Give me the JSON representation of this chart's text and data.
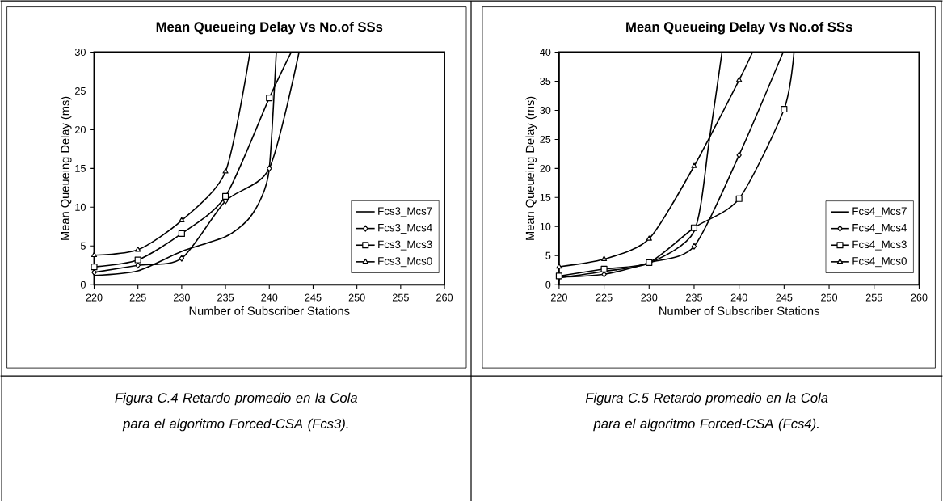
{
  "chart_data": [
    {
      "type": "line",
      "title": "Mean Queueing Delay Vs No.of SSs",
      "xlabel": "Number of Subscriber Stations",
      "ylabel": "Mean Queueing Delay (ms)",
      "xlim": [
        220,
        260
      ],
      "ylim": [
        0,
        30
      ],
      "xticks": [
        220,
        225,
        230,
        235,
        240,
        245,
        250,
        255,
        260
      ],
      "yticks": [
        0,
        5,
        10,
        15,
        20,
        25,
        30
      ],
      "legend": "bottom right",
      "annotations": [
        "Figura C.4 Retardo promedio en la Cola para el algoritmo Forced-CSA (Fcs3)."
      ],
      "series": [
        {
          "name": "Fcs3_Mcs7",
          "color": "#000000",
          "marker": "none",
          "x": [
            220,
            225,
            230,
            235,
            237.5,
            239,
            240,
            240.8
          ],
          "values": [
            1.2,
            1.8,
            4.3,
            6.2,
            8.3,
            11,
            15,
            30
          ]
        },
        {
          "name": "Fcs3_Mcs4",
          "color": "#000000",
          "marker": "diamond",
          "x": [
            220,
            225,
            230,
            235,
            240,
            243.4
          ],
          "values": [
            1.6,
            2.5,
            3.4,
            10.8,
            15,
            30
          ]
        },
        {
          "name": "Fcs3_Mcs3",
          "color": "#000000",
          "marker": "square",
          "x": [
            220,
            225,
            230,
            235,
            240,
            242.5
          ],
          "values": [
            2.3,
            3.2,
            6.6,
            11.4,
            24.1,
            30
          ]
        },
        {
          "name": "Fcs3_Mcs0",
          "color": "#000000",
          "marker": "triangle",
          "x": [
            220,
            225,
            230,
            235,
            237.8
          ],
          "values": [
            3.8,
            4.5,
            8.3,
            14.6,
            30
          ]
        }
      ]
    },
    {
      "type": "line",
      "title": "Mean Queueing Delay Vs No.of SSs",
      "xlabel": "Number of Subscriber Stations",
      "ylabel": "Mean Queueing Delay (ms)",
      "xlim": [
        220,
        260
      ],
      "ylim": [
        0,
        40
      ],
      "xticks": [
        220,
        225,
        230,
        235,
        240,
        245,
        250,
        255,
        260
      ],
      "yticks": [
        0,
        5,
        10,
        15,
        20,
        25,
        30,
        35,
        40
      ],
      "legend": "bottom right",
      "annotations": [
        "Figura C.5 Retardo promedio en la Cola para el algoritmo Forced-CSA (Fcs4)."
      ],
      "series": [
        {
          "name": "Fcs4_Mcs7",
          "color": "#000000",
          "marker": "none",
          "x": [
            220,
            225,
            230,
            235,
            236.7,
            238.1
          ],
          "values": [
            1.2,
            2.3,
            3.7,
            9.2,
            25,
            40
          ]
        },
        {
          "name": "Fcs4_Mcs4",
          "color": "#000000",
          "marker": "diamond",
          "x": [
            220,
            225,
            230,
            235,
            240,
            244.9
          ],
          "values": [
            1.3,
            1.8,
            3.8,
            6.6,
            22.3,
            40
          ]
        },
        {
          "name": "Fcs4_Mcs3",
          "color": "#000000",
          "marker": "square",
          "x": [
            220,
            225,
            230,
            235,
            240,
            245,
            246.1
          ],
          "values": [
            1.5,
            2.7,
            3.8,
            9.8,
            14.8,
            30.2,
            40
          ]
        },
        {
          "name": "Fcs4_Mcs0",
          "color": "#000000",
          "marker": "triangle",
          "x": [
            220,
            225,
            230,
            235,
            240,
            241.5
          ],
          "values": [
            3.1,
            4.4,
            7.9,
            20.4,
            35.2,
            40
          ]
        }
      ]
    }
  ]
}
